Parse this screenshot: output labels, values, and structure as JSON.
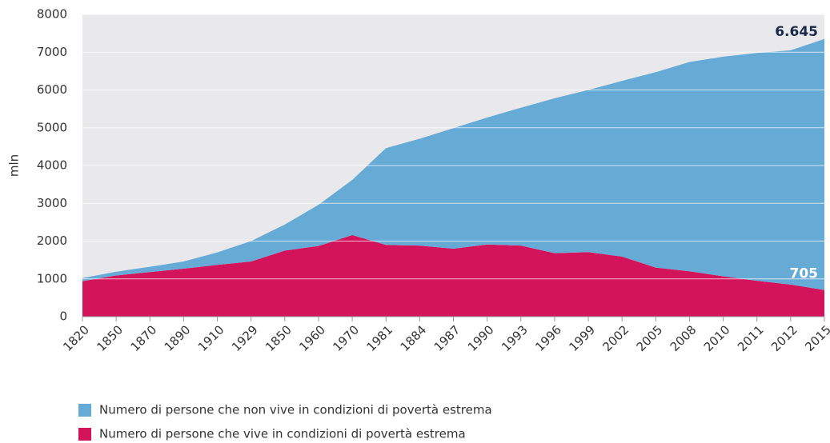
{
  "chart_data": {
    "type": "stacked_area",
    "y_label": "mln",
    "categories": [
      "1820",
      "1850",
      "1870",
      "1890",
      "1910",
      "1929",
      "1850",
      "1960",
      "1970",
      "1981",
      "1884",
      "1987",
      "1990",
      "1993",
      "1996",
      "1999",
      "2002",
      "2005",
      "2008",
      "2010",
      "2011",
      "2012",
      "2015"
    ],
    "series": [
      {
        "name": "Numero di persone che non vive in condizioni di povertà estrema",
        "color": "#66aad6",
        "values": [
          80,
          100,
          140,
          190,
          330,
          540,
          690,
          1090,
          1460,
          2560,
          2830,
          3190,
          3360,
          3650,
          4100,
          4290,
          4650,
          5170,
          5540,
          5810,
          6030,
          6200,
          6645
        ],
        "value_labels": [
          null,
          null,
          null,
          null,
          null,
          null,
          null,
          null,
          null,
          null,
          null,
          null,
          null,
          null,
          null,
          null,
          null,
          null,
          null,
          null,
          null,
          null,
          "6.645"
        ]
      },
      {
        "name": "Numero di persone che vive in condizioni di povertà estrema",
        "color": "#d4145a",
        "values": [
          940,
          1090,
          1180,
          1270,
          1370,
          1460,
          1750,
          1870,
          2160,
          1900,
          1880,
          1800,
          1910,
          1880,
          1680,
          1710,
          1590,
          1300,
          1200,
          1070,
          950,
          850,
          705
        ],
        "value_labels": [
          null,
          null,
          null,
          null,
          null,
          null,
          null,
          null,
          null,
          null,
          null,
          null,
          null,
          null,
          null,
          null,
          null,
          null,
          null,
          null,
          null,
          null,
          "705"
        ]
      }
    ],
    "ylim": [
      0,
      8000
    ],
    "yticks": [
      0,
      1000,
      2000,
      3000,
      4000,
      5000,
      6000,
      7000,
      8000
    ],
    "grid": true
  }
}
